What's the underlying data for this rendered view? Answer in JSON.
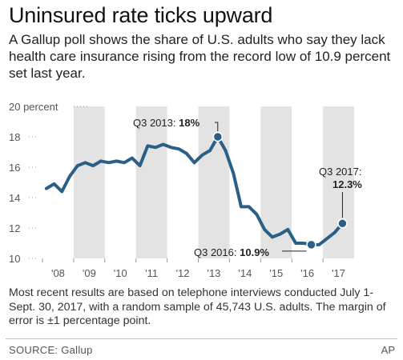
{
  "header": {
    "title": "Uninsured rate ticks upward",
    "subtitle": "A Gallup poll shows the share of U.S. adults who say they lack health care insurance rising from the record low of 10.9 percent set last year."
  },
  "footer": {
    "note": "Most recent results are based on telephone interviews conducted July 1-Sept. 30, 2017, with a random sample of 45,743 U.S. adults. The margin of error is ±1 percentage point.",
    "source": "SOURCE: Gallup",
    "credit": "AP"
  },
  "colors": {
    "line": "#2a5f86",
    "band": "#e3e3e3",
    "text": "#333333"
  },
  "chart_data": {
    "type": "line",
    "unit_label": "percent",
    "ylim": [
      10,
      20
    ],
    "y_ticks": [
      10,
      12,
      14,
      16,
      18,
      20
    ],
    "y_tick_labels": [
      "10",
      "12",
      "14",
      "16",
      "18",
      "20 percent"
    ],
    "x_tick_labels": [
      "'08",
      "'09",
      "'10",
      "'11",
      "'12",
      "'13",
      "'14",
      "'15",
      "'16",
      "'17"
    ],
    "grid": false,
    "alternating_year_bands": true,
    "series": [
      {
        "x": [
          "2008 Q1",
          "2008 Q2",
          "2008 Q3",
          "2008 Q4",
          "2009 Q1",
          "2009 Q2",
          "2009 Q3",
          "2009 Q4",
          "2010 Q1",
          "2010 Q2",
          "2010 Q3",
          "2010 Q4",
          "2011 Q1",
          "2011 Q2",
          "2011 Q3",
          "2011 Q4",
          "2012 Q1",
          "2012 Q2",
          "2012 Q3",
          "2012 Q4",
          "2013 Q1",
          "2013 Q2",
          "2013 Q3",
          "2013 Q4",
          "2014 Q1",
          "2014 Q2",
          "2014 Q3",
          "2014 Q4",
          "2015 Q1",
          "2015 Q2",
          "2015 Q3",
          "2015 Q4",
          "2016 Q1",
          "2016 Q2",
          "2016 Q3",
          "2016 Q4",
          "2017 Q1",
          "2017 Q2",
          "2017 Q3"
        ],
        "values": [
          14.6,
          14.9,
          14.4,
          15.4,
          16.1,
          16.3,
          16.1,
          16.4,
          16.3,
          16.4,
          16.3,
          16.6,
          16.1,
          17.4,
          17.3,
          17.5,
          17.3,
          17.2,
          16.9,
          16.3,
          16.8,
          17.1,
          18.0,
          17.1,
          15.6,
          13.4,
          13.4,
          12.9,
          11.9,
          11.4,
          11.6,
          11.9,
          11.0,
          11.0,
          10.9,
          10.9,
          11.3,
          11.7,
          12.3
        ]
      }
    ],
    "annotations": [
      {
        "label": "Q3 2013:",
        "value": "18%"
      },
      {
        "label": "Q3 2016:",
        "value": "10.9%"
      },
      {
        "label": "Q3 2017:",
        "value": "12.3%"
      }
    ]
  }
}
